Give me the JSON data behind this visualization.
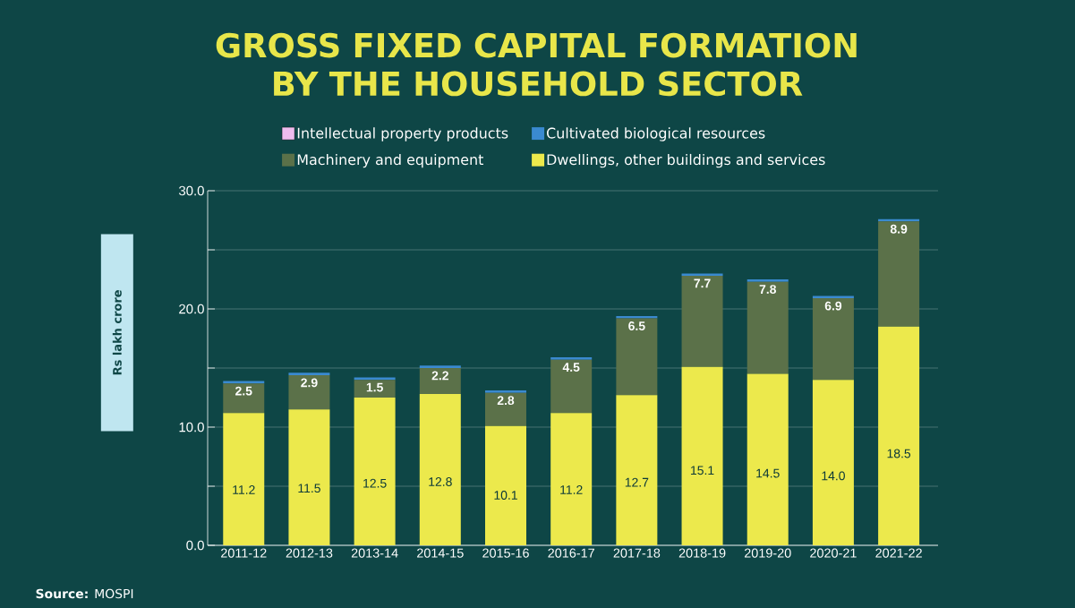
{
  "chart_data": {
    "type": "bar",
    "stacked": true,
    "title": "GROSS FIXED CAPITAL FORMATION BY THE HOUSEHOLD SECTOR",
    "ylabel": "Rs lakh crore",
    "categories": [
      "2011-12",
      "2012-13",
      "2013-14",
      "2014-15",
      "2015-16",
      "2016-17",
      "2017-18",
      "2018-19",
      "2019-20",
      "2020-21",
      "2021-22"
    ],
    "series": [
      {
        "name": "Dwellings, other buildings and services",
        "color": "#ece94c",
        "values": [
          11.2,
          11.5,
          12.5,
          12.8,
          10.1,
          11.2,
          12.7,
          15.1,
          14.5,
          14.0,
          18.5
        ],
        "value_labels": [
          "11.2",
          "11.5",
          "12.5",
          "12.8",
          "10.1",
          "11.2",
          "12.7",
          "15.1",
          "14.5",
          "14.0",
          "18.5"
        ]
      },
      {
        "name": "Machinery and equipment",
        "color": "#5b7149",
        "values": [
          2.5,
          2.9,
          1.5,
          2.2,
          2.8,
          4.5,
          6.5,
          7.7,
          7.8,
          6.9,
          8.9
        ],
        "value_labels": [
          "2.5",
          "2.9",
          "1.5",
          "2.2",
          "2.8",
          "4.5",
          "6.5",
          "7.7",
          "7.8",
          "6.9",
          "8.9"
        ]
      },
      {
        "name": "Cultivated biological resources",
        "color": "#3a8ad0",
        "values": [
          0.2,
          0.2,
          0.2,
          0.2,
          0.2,
          0.2,
          0.2,
          0.2,
          0.2,
          0.2,
          0.2
        ]
      },
      {
        "name": "Intellectual property products",
        "color": "#eebcee",
        "values": [
          null,
          null,
          null,
          null,
          null,
          null,
          null,
          null,
          null,
          null,
          null
        ]
      }
    ],
    "ylim": [
      0,
      30
    ],
    "yticks": [
      {
        "value": 0,
        "label": "0.0"
      },
      {
        "value": 5,
        "label": null
      },
      {
        "value": 10,
        "label": "10.0"
      },
      {
        "value": 15,
        "label": null
      },
      {
        "value": 20,
        "label": "20.0"
      },
      {
        "value": 25,
        "label": null
      },
      {
        "value": 30,
        "label": "30.0"
      }
    ],
    "grid": "y",
    "legend": "top",
    "annotations": [
      "**Source:** MOSPI"
    ]
  }
}
